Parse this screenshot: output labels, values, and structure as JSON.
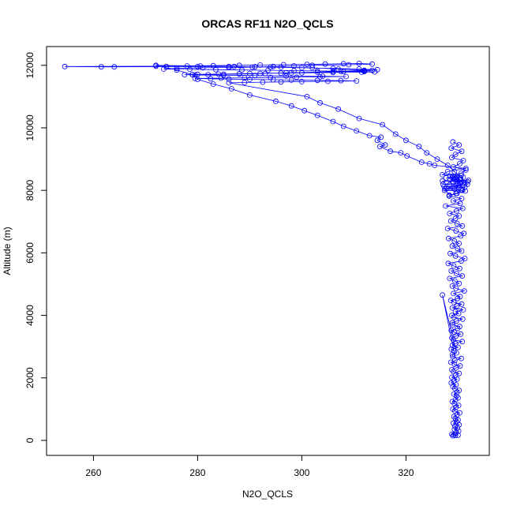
{
  "chart_data": {
    "type": "line",
    "title": "ORCAS RF11 N2O_QCLS",
    "xlabel": "N2O_QCLS",
    "ylabel": "Altitude (m)",
    "xlim": [
      251,
      336
    ],
    "ylim": [
      -480,
      12600
    ],
    "x_ticks": [
      260,
      280,
      300,
      320
    ],
    "y_ticks": [
      0,
      2000,
      4000,
      6000,
      8000,
      10000,
      12000
    ],
    "x_tick_labels": [
      "260",
      "280",
      "300",
      "320"
    ],
    "y_tick_labels": [
      "0",
      "2000",
      "4000",
      "6000",
      "8000",
      "10000",
      "12000"
    ],
    "grid": false,
    "legend": "none",
    "series": [
      {
        "color": "#0000ff",
        "marker": "open-circle",
        "x": [
          329.0,
          329.5,
          330.0,
          329.2,
          328.8,
          329.6,
          330.1,
          329.3,
          329.9,
          329.4,
          330.2,
          329.1,
          329.7,
          330.0,
          329.5,
          329.2,
          329.8,
          330.3,
          329.4,
          329.0,
          329.6,
          330.1,
          329.3,
          328.9,
          329.5,
          330.0,
          329.7,
          329.2,
          329.8,
          330.2,
          329.4,
          329.0,
          329.6,
          328.7,
          329.2,
          329.8,
          328.8,
          329.5,
          330.2,
          329.1,
          328.8,
          329.6,
          330.4,
          329.3,
          328.6,
          329.4,
          330.6,
          329.0,
          328.9,
          329.7,
          327.0,
          329.2,
          328.7,
          330.0,
          328.9,
          329.5,
          330.8,
          329.1,
          328.8,
          329.6,
          330.5,
          329.3,
          328.7,
          329.9,
          330.3,
          329.0,
          328.9,
          329.7,
          330.9,
          329.2,
          328.8,
          330.1,
          329.5,
          331.0,
          328.9,
          329.8,
          330.7,
          329.2,
          328.6,
          329.9,
          330.4,
          329.1,
          331.2,
          329.6,
          328.9,
          330.2,
          329.4,
          328.4,
          330.8,
          329.7,
          328.7,
          330.3,
          329.2,
          328.1,
          330.6,
          331.3,
          329.5,
          328.5,
          330.7,
          329.9,
          328.9,
          330.2,
          329.3,
          328.2,
          330.5,
          331.1,
          329.6,
          328.0,
          330.8,
          329.8,
          328.6,
          329.5,
          330.2,
          328.4,
          329.7,
          330.9,
          327.6,
          330.4,
          329.1,
          330.7,
          328.3,
          329.8,
          331.4,
          327.4,
          330.6,
          329.3,
          327.8,
          330.2,
          331.3,
          327.3,
          329.6,
          330.8,
          328.4,
          327.1,
          329.9,
          330.5,
          329.0,
          331.8,
          327.0,
          332.0,
          328.5,
          330.4,
          329.5,
          327.7,
          331.0,
          328.9,
          329.8,
          330.6,
          327.0,
          328.0,
          331.5,
          325.5,
          324.5,
          323.0,
          320.2,
          319.0,
          317.0,
          315.0,
          316.0,
          314.5,
          315.2,
          313.0,
          310.5,
          308.0,
          306.0,
          303.0,
          300.5,
          298.0,
          295.0,
          290.0,
          286.5,
          283.0,
          280.0,
          279.0,
          276.0,
          272.0,
          280.5,
          287.0,
          294.0,
          300.0,
          306.0,
          311.0,
          314.5,
          312.0,
          306.0,
          298.0,
          290.0,
          285.0,
          279.0,
          282.0,
          288.0,
          293.0,
          297.0,
          303.0,
          308.0,
          312.0,
          313.5,
          307.0,
          302.0,
          296.0,
          291.0,
          286.0,
          280.0,
          274.0,
          264.0,
          261.5,
          254.5,
          272.0,
          278.0,
          283.0,
          288.0,
          292.0,
          296.5,
          301.0,
          304.5,
          308.0,
          311.0,
          313.5,
          309.0,
          302.0,
          298.5,
          294.5,
          290.5,
          286.0,
          281.0,
          276.0,
          273.5,
          278.5,
          283.5,
          288.5,
          293.5,
          298.5,
          303.0,
          307.5,
          312.0,
          314.0,
          311.5,
          306.0,
          300.0,
          296.0,
          292.0,
          288.0,
          284.0,
          280.0,
          277.5,
          279.5,
          285.0,
          291.0,
          297.0,
          304.0,
          308.5,
          303.5,
          299.0,
          294.0,
          289.0,
          284.5,
          279.5,
          282.5,
          286.0,
          290.0,
          294.5,
          298.0,
          303.0,
          307.5,
          310.5,
          305.0,
          300.0,
          296.0,
          292.5,
          289.0,
          286.0,
          301.0,
          303.5,
          307.0,
          311.0,
          315.5,
          318.0,
          320.0,
          322.5,
          324.0,
          326.0,
          328.0,
          329.3,
          330.5,
          331.8,
          330.8,
          329.6,
          328.3,
          327.5,
          330.2,
          331.2,
          329.8,
          328.5,
          330.6,
          331.5,
          329.1,
          330.3,
          331.0,
          328.8,
          329.5,
          330.7,
          328.7,
          330.2,
          329.0
        ],
        "y": [
          150,
          160,
          170,
          180,
          200,
          250,
          300,
          350,
          400,
          450,
          500,
          550,
          600,
          650,
          700,
          760,
          820,
          880,
          940,
          1000,
          1060,
          1120,
          1180,
          1240,
          1300,
          1360,
          1420,
          1480,
          1540,
          1600,
          1660,
          1720,
          1780,
          1840,
          1900,
          1960,
          2020,
          2080,
          2140,
          2200,
          2260,
          2320,
          2380,
          2440,
          2500,
          2560,
          2620,
          2680,
          2740,
          2800,
          4650,
          2860,
          2920,
          2980,
          3040,
          3100,
          3160,
          3220,
          3280,
          3340,
          3400,
          3460,
          3520,
          3580,
          3640,
          3700,
          3760,
          3820,
          3880,
          3940,
          4000,
          4060,
          4120,
          4180,
          4240,
          4300,
          4360,
          4420,
          4480,
          4540,
          4600,
          4700,
          4780,
          4860,
          4940,
          5020,
          5100,
          5180,
          5260,
          5340,
          5420,
          5500,
          5580,
          5660,
          5740,
          5820,
          5900,
          5980,
          6060,
          6140,
          6220,
          6300,
          6380,
          6460,
          6540,
          6620,
          6700,
          6780,
          6860,
          6940,
          7020,
          7100,
          7180,
          7260,
          7340,
          7420,
          7500,
          7580,
          7660,
          7740,
          7820,
          7900,
          7980,
          8000,
          8020,
          8040,
          8060,
          8080,
          8100,
          8120,
          8140,
          8160,
          8180,
          8200,
          8220,
          8240,
          8260,
          8280,
          8300,
          8320,
          8340,
          8360,
          8380,
          8400,
          8420,
          8440,
          8460,
          8480,
          8500,
          8600,
          8700,
          8800,
          8850,
          8900,
          9100,
          9200,
          9250,
          9400,
          9450,
          9600,
          9700,
          9750,
          9900,
          10050,
          10200,
          10400,
          10550,
          10700,
          10850,
          11050,
          11250,
          11400,
          11550,
          11700,
          11850,
          12000,
          11980,
          11960,
          11940,
          11920,
          11900,
          11880,
          11860,
          11840,
          11800,
          11760,
          11740,
          11720,
          11700,
          11700,
          11720,
          11740,
          11760,
          11780,
          11800,
          11820,
          11840,
          11880,
          11920,
          11940,
          11950,
          11960,
          11960,
          11960,
          11950,
          11950,
          11960,
          11970,
          11980,
          11990,
          12000,
          12010,
          12020,
          12030,
          12040,
          12050,
          12060,
          12040,
          12020,
          12000,
          11980,
          11960,
          11940,
          11930,
          11920,
          11900,
          11880,
          11870,
          11860,
          11850,
          11840,
          11830,
          11820,
          11810,
          11800,
          11790,
          11780,
          11770,
          11760,
          11750,
          11740,
          11730,
          11720,
          11710,
          11700,
          11690,
          11680,
          11670,
          11660,
          11650,
          11640,
          11630,
          11620,
          11610,
          11600,
          11590,
          11580,
          11570,
          11560,
          11550,
          11540,
          11530,
          11520,
          11510,
          11500,
          11490,
          11480,
          11470,
          11460,
          11450,
          11440,
          11000,
          10800,
          10600,
          10300,
          10100,
          9800,
          9600,
          9400,
          9200,
          9000,
          8800,
          8600,
          8400,
          8200,
          8000,
          7900,
          7850,
          8050,
          8150,
          8250,
          8350,
          8450,
          8550,
          8650,
          8750,
          8850,
          8950,
          9050,
          9150,
          9250,
          9350,
          9450,
          9550
        ]
      }
    ]
  }
}
